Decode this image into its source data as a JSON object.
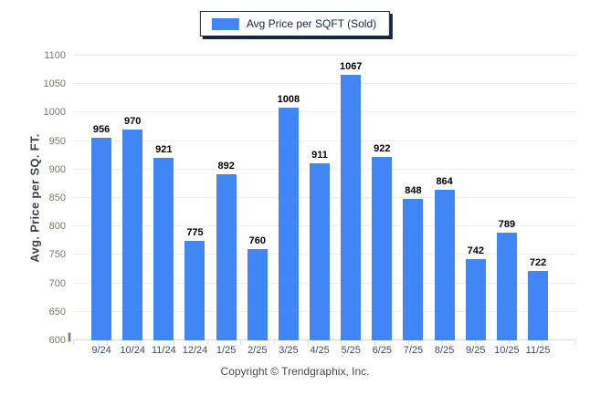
{
  "legend": {
    "label": "Avg Price per SQFT (Sold)"
  },
  "y_axis": {
    "title": "Avg. Price per SQ. FT."
  },
  "footer": {
    "text": "Copyright © Trendgraphix, Inc."
  },
  "colors": {
    "bar": "#4285f4",
    "legend_border": "#16263f",
    "grid": "#ececec",
    "baseline": "#dcdcdc",
    "y_tick_label": "#7d756d",
    "x_tick_label": "#3d4a66",
    "value_label": "#000000"
  },
  "chart_data": {
    "type": "bar",
    "title": "Avg Price per SQFT (Sold)",
    "categories": [
      "9/24",
      "10/24",
      "11/24",
      "12/24",
      "1/25",
      "2/25",
      "3/25",
      "4/25",
      "5/25",
      "6/25",
      "7/25",
      "8/25",
      "9/25",
      "10/25",
      "11/25"
    ],
    "values": [
      956,
      970,
      921,
      775,
      892,
      760,
      1008,
      911,
      1067,
      922,
      848,
      864,
      742,
      789,
      722
    ],
    "xlabel": "",
    "ylabel": "Avg. Price per SQ. FT.",
    "ylim": [
      600,
      1100
    ],
    "ytick_step": 50,
    "grid": "horizontal",
    "legend_position": "top-center",
    "bar_color": "#4285f4",
    "value_labels": true
  }
}
